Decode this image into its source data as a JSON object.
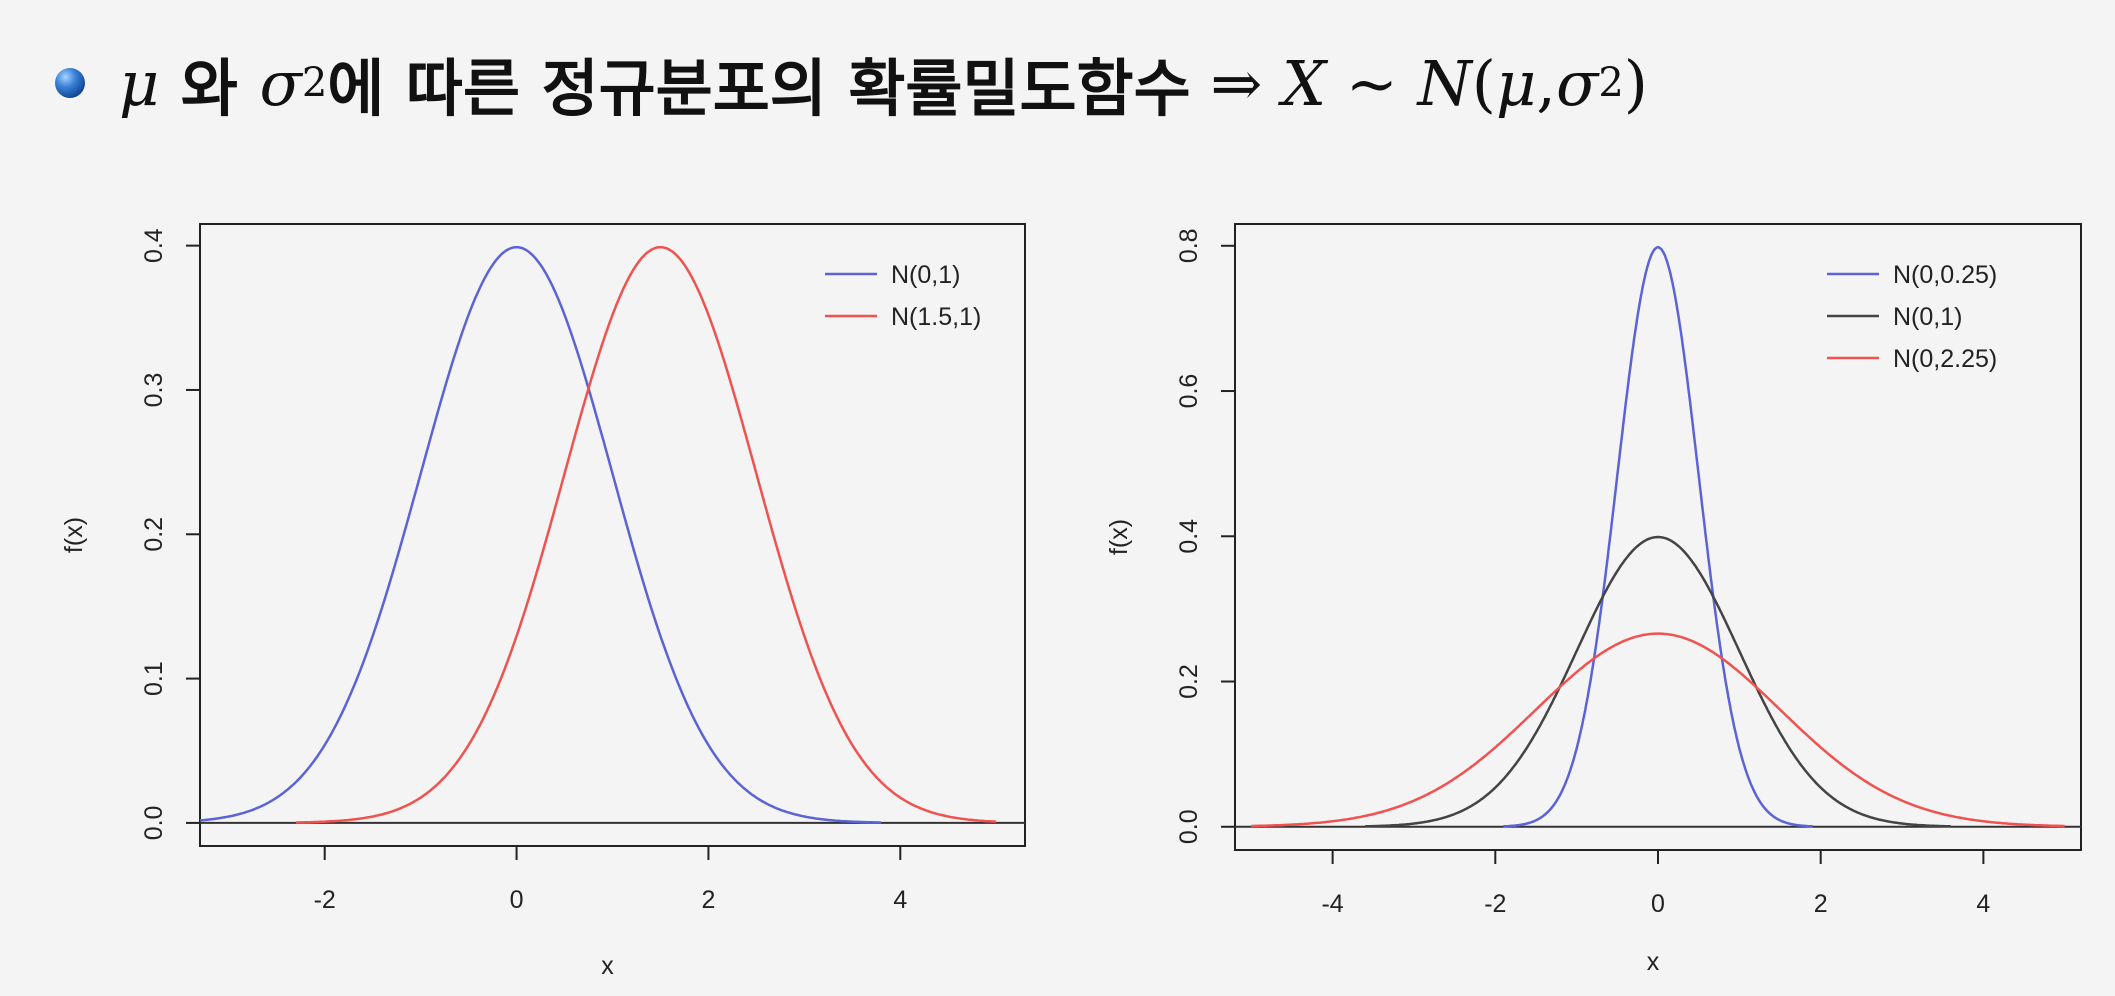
{
  "title": {
    "mu": "μ",
    "wa": " 와 ",
    "sigma": "σ",
    "sup2": "2",
    "text": "에 따른 정규분포의 확률밀도함수",
    "arrow": " ⇒ ",
    "X": "X",
    "tilde": " ~ ",
    "N": "N",
    "lparen": "(",
    "mu2": "μ",
    "comma": ",",
    "sigma2": "σ",
    "sup2b": "2",
    "rparen": ")"
  },
  "chart_data": [
    {
      "type": "line",
      "xlabel": "x",
      "ylabel": "f(x)",
      "xlim": [
        -3.3,
        5.3
      ],
      "ylim": [
        -0.016,
        0.415
      ],
      "xticks": [
        -2,
        0,
        2,
        4
      ],
      "xtick_labels": [
        "-2",
        "0",
        "2",
        "4"
      ],
      "yticks": [
        0.0,
        0.1,
        0.2,
        0.3,
        0.4
      ],
      "ytick_labels": [
        "0.0",
        "0.1",
        "0.2",
        "0.3",
        "0.4"
      ],
      "hline": 0,
      "legend_position": "top-right",
      "series": [
        {
          "name": "N(0,1)",
          "color": "#5b63d6",
          "mu": 0,
          "var": 1,
          "x_range": [
            -3.3,
            3.8
          ]
        },
        {
          "name": "N(1.5,1)",
          "color": "#f0524f",
          "mu": 1.5,
          "var": 1,
          "x_range": [
            -2.3,
            5.0
          ]
        }
      ]
    },
    {
      "type": "line",
      "xlabel": "x",
      "ylabel": "f(x)",
      "xlim": [
        -5.2,
        5.2
      ],
      "ylim": [
        -0.032,
        0.83
      ],
      "xticks": [
        -4,
        -2,
        0,
        2,
        4
      ],
      "xtick_labels": [
        "-4",
        "-2",
        "0",
        "2",
        "4"
      ],
      "yticks": [
        0.0,
        0.2,
        0.4,
        0.6,
        0.8
      ],
      "ytick_labels": [
        "0.0",
        "0.2",
        "0.4",
        "0.6",
        "0.8"
      ],
      "hline": 0,
      "legend_position": "top-right",
      "series": [
        {
          "name": "N(0,0.25)",
          "color": "#5b63d6",
          "mu": 0,
          "var": 0.25,
          "x_range": [
            -1.9,
            1.9
          ]
        },
        {
          "name": "N(0,1)",
          "color": "#444444",
          "mu": 0,
          "var": 1,
          "x_range": [
            -3.6,
            3.6
          ]
        },
        {
          "name": "N(0,2.25)",
          "color": "#f0524f",
          "mu": 0,
          "var": 2.25,
          "x_range": [
            -5.0,
            5.0
          ]
        }
      ]
    }
  ]
}
